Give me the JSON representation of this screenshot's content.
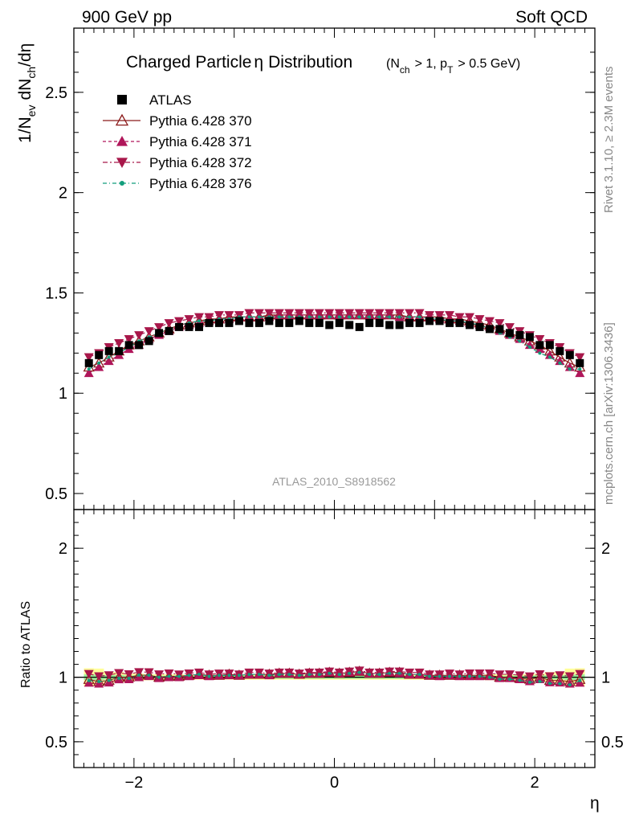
{
  "header": {
    "left": "900 GeV pp",
    "right": "Soft QCD"
  },
  "main": {
    "title": "Charged Particle",
    "title_symbol": "η",
    "title_suffix": "Distribution",
    "title_cond_a": "(N",
    "title_cond_a_sub": "ch",
    "title_cond_b": "> 1, p",
    "title_cond_b_sub": "T",
    "title_cond_c": "> 0.5 GeV)",
    "ylabel_a": "1/N",
    "ylabel_a_sub": "ev",
    "ylabel_b": "dN",
    "ylabel_b_sub": "ch",
    "ylabel_c": "/dη",
    "watermark": "ATLAS_2010_S8918562"
  },
  "ratio": {
    "ylabel": "Ratio to ATLAS"
  },
  "xaxis": {
    "label": "η"
  },
  "side": {
    "rivet": "Rivet 3.1.10, ≥ 2.3M events",
    "mcplots": "mcplots.cern.ch [arXiv:1306.3436]"
  },
  "legend": {
    "items": [
      "ATLAS",
      "Pythia 6.428 370",
      "Pythia 6.428 371",
      "Pythia 6.428 372",
      "Pythia 6.428 376"
    ]
  },
  "colors": {
    "atlas": "#000000",
    "p370": "#8b1a1a",
    "p371": "#b0165a",
    "p372": "#a8174a",
    "p376": "#129e7c",
    "band_yellow": "#ffff99",
    "band_green": "#99ee99"
  },
  "chart_data": {
    "type": "scatter",
    "xlabel": "η",
    "ylabel": "1/N_ev dN_ch/dη",
    "xlim": [
      -2.6,
      2.6
    ],
    "ylim": [
      0.42,
      2.82
    ],
    "ratio_ylim": [
      0.3,
      2.3
    ],
    "x": [
      -2.45,
      -2.35,
      -2.25,
      -2.15,
      -2.05,
      -1.95,
      -1.85,
      -1.75,
      -1.65,
      -1.55,
      -1.45,
      -1.35,
      -1.25,
      -1.15,
      -1.05,
      -0.95,
      -0.85,
      -0.75,
      -0.65,
      -0.55,
      -0.45,
      -0.35,
      -0.25,
      -0.15,
      -0.05,
      0.05,
      0.15,
      0.25,
      0.35,
      0.45,
      0.55,
      0.65,
      0.75,
      0.85,
      0.95,
      1.05,
      1.15,
      1.25,
      1.35,
      1.45,
      1.55,
      1.65,
      1.75,
      1.85,
      1.95,
      2.05,
      2.15,
      2.25,
      2.35,
      2.45
    ],
    "series": [
      {
        "name": "ATLAS",
        "values": [
          1.15,
          1.19,
          1.21,
          1.21,
          1.24,
          1.24,
          1.26,
          1.3,
          1.31,
          1.33,
          1.33,
          1.33,
          1.35,
          1.35,
          1.35,
          1.36,
          1.35,
          1.35,
          1.36,
          1.35,
          1.35,
          1.36,
          1.35,
          1.35,
          1.34,
          1.35,
          1.34,
          1.33,
          1.35,
          1.35,
          1.34,
          1.34,
          1.35,
          1.35,
          1.36,
          1.36,
          1.35,
          1.35,
          1.34,
          1.33,
          1.32,
          1.32,
          1.3,
          1.29,
          1.28,
          1.24,
          1.24,
          1.21,
          1.19,
          1.15
        ],
        "band_yellow": [
          0.08,
          0.08,
          0.05,
          0.05,
          0.035,
          0.035,
          0.03,
          0.03,
          0.03,
          0.03,
          0.025,
          0.025,
          0.025,
          0.025,
          0.025,
          0.025,
          0.025,
          0.025,
          0.025,
          0.025,
          0.025,
          0.025,
          0.025,
          0.025,
          0.025,
          0.025,
          0.025,
          0.025,
          0.025,
          0.025,
          0.025,
          0.025,
          0.025,
          0.025,
          0.025,
          0.025,
          0.025,
          0.025,
          0.025,
          0.025,
          0.03,
          0.03,
          0.03,
          0.03,
          0.035,
          0.035,
          0.05,
          0.05,
          0.08,
          0.08
        ],
        "band_green": [
          0.025,
          0.025,
          0.02,
          0.02,
          0.018,
          0.018,
          0.016,
          0.016,
          0.015,
          0.015,
          0.015,
          0.015,
          0.015,
          0.015,
          0.015,
          0.015,
          0.015,
          0.015,
          0.015,
          0.015,
          0.015,
          0.015,
          0.015,
          0.015,
          0.015,
          0.015,
          0.015,
          0.015,
          0.015,
          0.015,
          0.015,
          0.015,
          0.015,
          0.015,
          0.015,
          0.015,
          0.015,
          0.015,
          0.015,
          0.015,
          0.015,
          0.015,
          0.016,
          0.016,
          0.018,
          0.018,
          0.02,
          0.02,
          0.025,
          0.025
        ]
      },
      {
        "name": "Pythia 6.428 370",
        "values": [
          1.13,
          1.15,
          1.18,
          1.21,
          1.24,
          1.26,
          1.28,
          1.3,
          1.32,
          1.34,
          1.35,
          1.36,
          1.37,
          1.37,
          1.38,
          1.38,
          1.38,
          1.38,
          1.39,
          1.39,
          1.39,
          1.39,
          1.39,
          1.39,
          1.39,
          1.39,
          1.39,
          1.39,
          1.39,
          1.39,
          1.39,
          1.39,
          1.38,
          1.38,
          1.38,
          1.38,
          1.37,
          1.37,
          1.36,
          1.35,
          1.34,
          1.32,
          1.3,
          1.28,
          1.26,
          1.24,
          1.21,
          1.18,
          1.15,
          1.13
        ]
      },
      {
        "name": "Pythia 6.428 371",
        "values": [
          1.1,
          1.13,
          1.16,
          1.19,
          1.22,
          1.24,
          1.27,
          1.29,
          1.31,
          1.33,
          1.34,
          1.35,
          1.36,
          1.37,
          1.37,
          1.38,
          1.38,
          1.38,
          1.38,
          1.39,
          1.39,
          1.39,
          1.39,
          1.39,
          1.39,
          1.39,
          1.39,
          1.39,
          1.39,
          1.39,
          1.39,
          1.38,
          1.38,
          1.38,
          1.38,
          1.37,
          1.37,
          1.36,
          1.35,
          1.34,
          1.33,
          1.31,
          1.29,
          1.27,
          1.24,
          1.22,
          1.19,
          1.16,
          1.13,
          1.1
        ]
      },
      {
        "name": "Pythia 6.428 372",
        "values": [
          1.18,
          1.2,
          1.23,
          1.25,
          1.27,
          1.29,
          1.31,
          1.33,
          1.35,
          1.36,
          1.37,
          1.38,
          1.38,
          1.39,
          1.39,
          1.39,
          1.4,
          1.4,
          1.4,
          1.4,
          1.4,
          1.4,
          1.4,
          1.4,
          1.4,
          1.4,
          1.4,
          1.4,
          1.4,
          1.4,
          1.4,
          1.4,
          1.4,
          1.4,
          1.39,
          1.39,
          1.39,
          1.38,
          1.38,
          1.37,
          1.36,
          1.35,
          1.33,
          1.31,
          1.29,
          1.27,
          1.25,
          1.23,
          1.2,
          1.18
        ]
      },
      {
        "name": "Pythia 6.428 376",
        "values": [
          1.12,
          1.15,
          1.18,
          1.2,
          1.23,
          1.26,
          1.28,
          1.3,
          1.32,
          1.34,
          1.35,
          1.36,
          1.36,
          1.37,
          1.37,
          1.38,
          1.38,
          1.38,
          1.38,
          1.38,
          1.38,
          1.38,
          1.38,
          1.38,
          1.38,
          1.38,
          1.38,
          1.38,
          1.38,
          1.38,
          1.38,
          1.38,
          1.38,
          1.38,
          1.37,
          1.37,
          1.36,
          1.36,
          1.35,
          1.34,
          1.32,
          1.3,
          1.28,
          1.26,
          1.23,
          1.2,
          1.18,
          1.15,
          1.12,
          1.12
        ]
      }
    ]
  }
}
